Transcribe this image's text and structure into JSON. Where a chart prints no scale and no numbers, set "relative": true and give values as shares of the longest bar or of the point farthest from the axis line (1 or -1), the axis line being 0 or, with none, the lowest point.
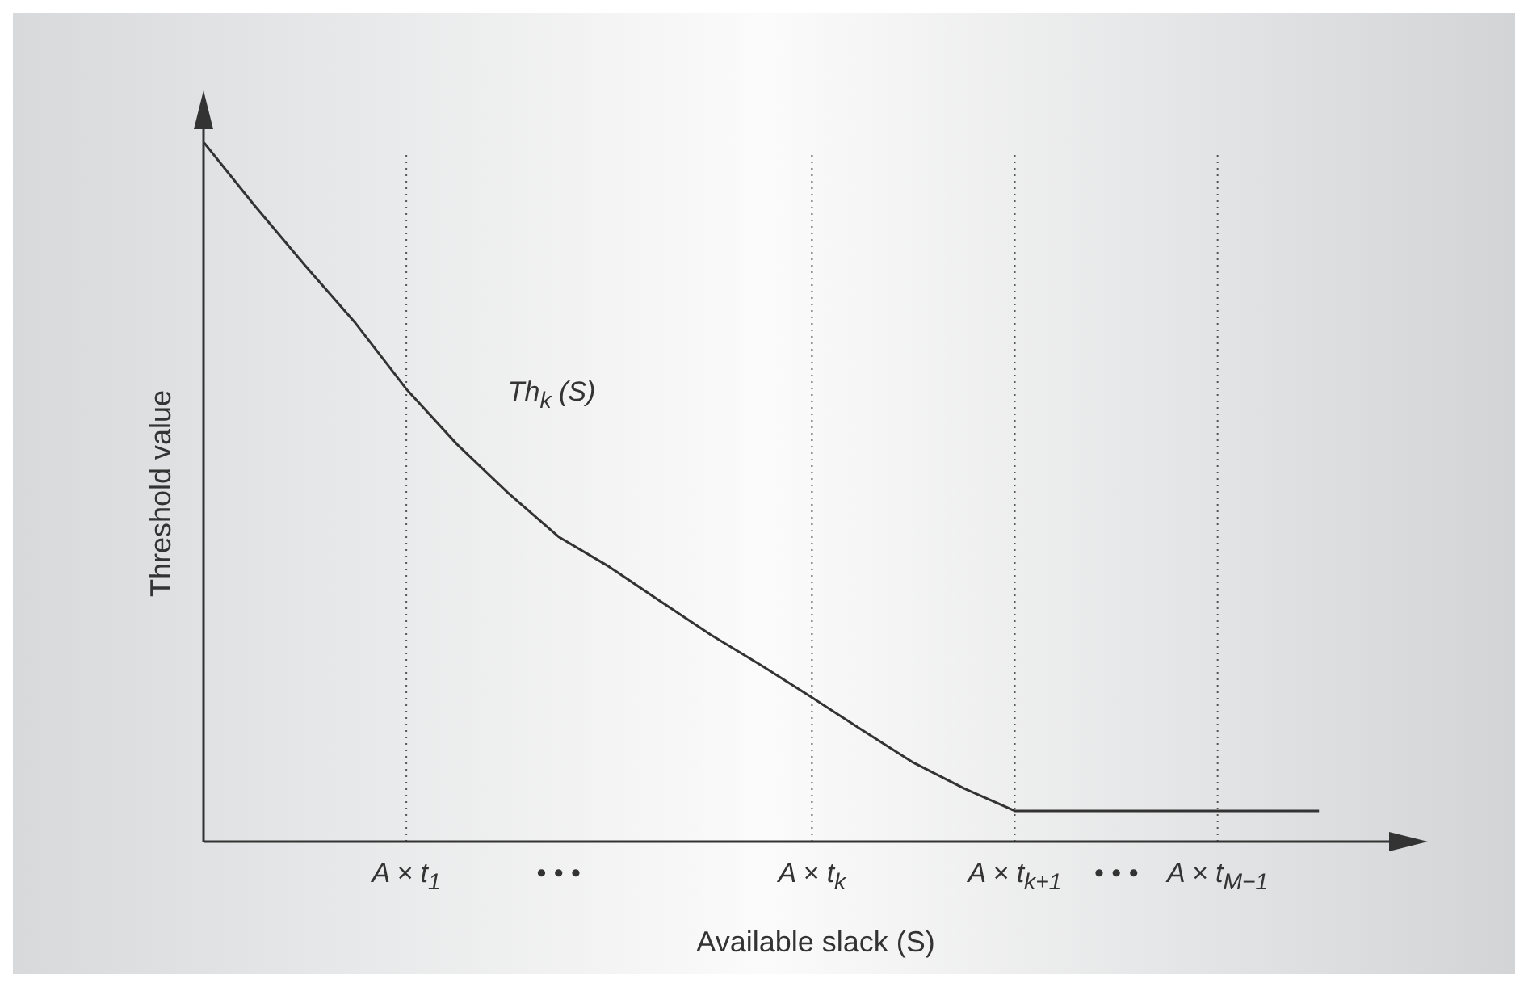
{
  "chart_data": {
    "type": "line",
    "relative": true,
    "xlabel": "Available slack (S)",
    "ylabel": "Threshold value",
    "marker": "none",
    "categories": [
      null,
      null,
      null,
      null,
      "A × t$_{1}$",
      null,
      null,
      "• • •",
      null,
      null,
      null,
      null,
      "A × t$_{k}$",
      null,
      null,
      null,
      "A × t$_{k+1}$",
      null,
      "• • •",
      null,
      "A × t$_{M−1}$",
      null,
      null,
      null
    ],
    "series": [
      {
        "name": "Th$_{k}$ (S)",
        "color": "#333333",
        "values": [
          1.0,
          0.91,
          0.824,
          0.741,
          0.647,
          0.568,
          0.499,
          0.436,
          0.393,
          0.344,
          0.296,
          0.252,
          0.206,
          0.159,
          0.113,
          0.076,
          0.044,
          0.044,
          0.044,
          0.044,
          0.044,
          0.044,
          0.044,
          null
        ]
      }
    ],
    "ref_lines": [
      {
        "axis": "x",
        "value": "A × t$_{1}$",
        "color": "#555555",
        "line_style": "dotted"
      },
      {
        "axis": "x",
        "value": "A × t$_{k}$",
        "color": "#555555",
        "line_style": "dotted"
      },
      {
        "axis": "x",
        "value": "A × t$_{k+1}$",
        "color": "#555555",
        "line_style": "dotted"
      },
      {
        "axis": "x",
        "value": "A × t$_{M−1}$",
        "color": "#555555",
        "line_style": "dotted"
      }
    ]
  }
}
